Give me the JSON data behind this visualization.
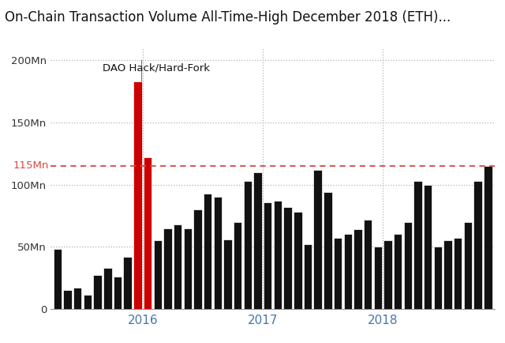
{
  "title": "On-Chain Transaction Volume All-Time-High December 2018 (ETH)...",
  "title_fontsize": 12,
  "annotation": "DAO Hack/Hard-Fork",
  "annotation_color": "#111111",
  "hline_value": 115,
  "hline_label": "115Mn",
  "hline_color": "#dd4444",
  "special_color": "#cc0000",
  "normal_color": "#111111",
  "background_color": "#ffffff",
  "grid_color": "#b0b0b0",
  "ylim": [
    0,
    210
  ],
  "ytick_values": [
    0,
    50,
    100,
    150,
    200
  ],
  "ytick_labels": [
    "0",
    "50Mn",
    "100Mn",
    "150Mn",
    "200Mn"
  ],
  "xtick_positions": [
    8.5,
    20.5,
    32.5
  ],
  "xtick_labels": [
    "2016",
    "2017",
    "2018"
  ],
  "values": [
    48,
    15,
    17,
    11,
    27,
    33,
    26,
    42,
    183,
    122,
    55,
    65,
    68,
    65,
    80,
    93,
    90,
    56,
    70,
    103,
    110,
    86,
    87,
    82,
    78,
    52,
    112,
    94,
    57,
    60,
    64,
    72,
    50,
    55,
    60,
    70,
    103,
    100,
    50,
    55,
    57,
    70,
    103,
    115
  ],
  "red_bars": [
    8,
    9
  ],
  "vline_positions": [
    8.5,
    20.5,
    32.5
  ]
}
